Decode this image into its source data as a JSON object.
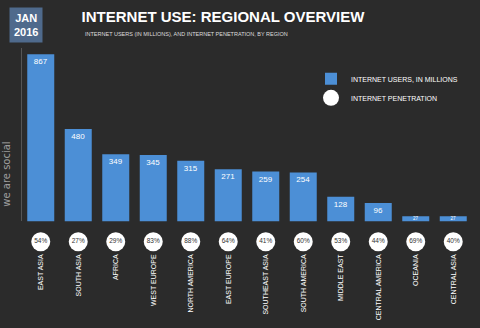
{
  "chart_data": {
    "type": "bar",
    "title": "INTERNET USE: REGIONAL OVERVIEW",
    "subtitle": "INTERNET USERS (IN MILLIONS), AND INTERNET PENETRATION, BY REGION",
    "annotations": [
      "JAN 2016",
      "we are social"
    ],
    "categories": [
      "EAST ASIA",
      "SOUTH ASIA",
      "AFRICA",
      "WEST EUROPE",
      "NORTH AMERICA",
      "EAST EUROPE",
      "SOUTHEAST ASIA",
      "SOUTH AMERICA",
      "MIDDLE EAST",
      "CENTRAL AMERICA",
      "OCEANIA",
      "CENTRAL ASIA"
    ],
    "series": [
      {
        "name": "INTERNET USERS, IN MILLIONS",
        "type": "bar",
        "color": "#4c8fd6",
        "values": [
          867,
          480,
          349,
          345,
          315,
          271,
          259,
          254,
          128,
          96,
          27,
          27
        ]
      },
      {
        "name": "INTERNET PENETRATION",
        "type": "scatter",
        "marker": "circle",
        "color": "#ffffff",
        "values": [
          54,
          27,
          29,
          83,
          88,
          64,
          41,
          60,
          53,
          44,
          69,
          40
        ],
        "value_labels": [
          "54%",
          "27%",
          "29%",
          "83%",
          "88%",
          "64%",
          "41%",
          "60%",
          "53%",
          "44%",
          "69%",
          "40%"
        ]
      }
    ],
    "ylim": [
      0,
      900
    ],
    "data_labels": true,
    "tick_labels": "x",
    "grid": false,
    "legend": "upper right"
  }
}
